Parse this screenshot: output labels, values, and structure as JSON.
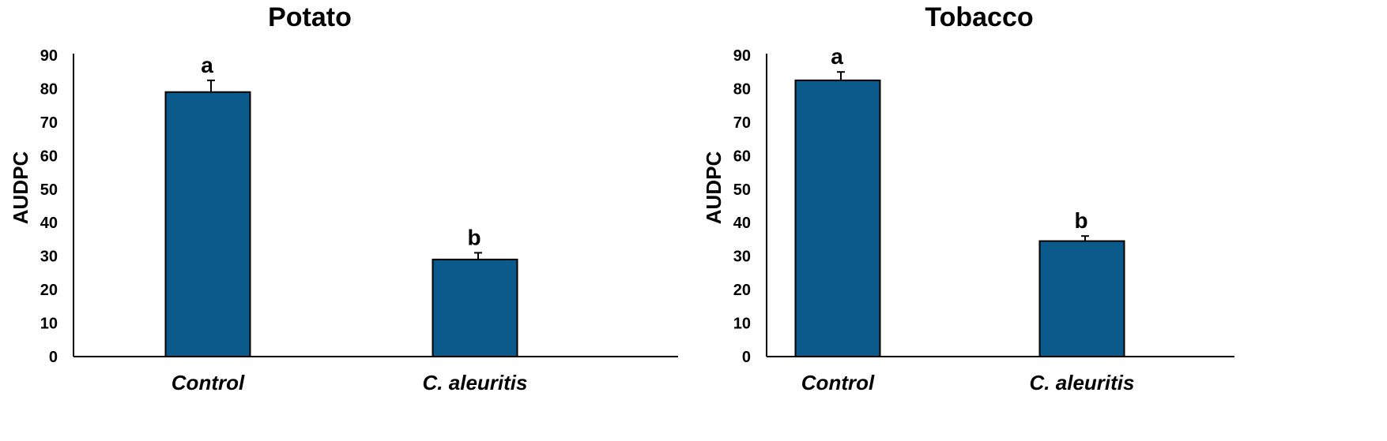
{
  "chart_data": [
    {
      "type": "bar",
      "title": "Potato",
      "xlabel": "",
      "ylabel": "AUDPC",
      "ylim": [
        0,
        90
      ],
      "yticks": [
        0,
        10,
        20,
        30,
        40,
        50,
        60,
        70,
        80,
        90
      ],
      "categories": [
        "Control",
        "C. aleuritis"
      ],
      "values": [
        79,
        29
      ],
      "errors": [
        3.5,
        2
      ],
      "significance_letters": [
        "a",
        "b"
      ],
      "bar_color": "#0b5a8c",
      "grid": false,
      "legend": "none"
    },
    {
      "type": "bar",
      "title": "Tobacco",
      "xlabel": "",
      "ylabel": "AUDPC",
      "ylim": [
        0,
        90
      ],
      "yticks": [
        0,
        10,
        20,
        30,
        40,
        50,
        60,
        70,
        80,
        90
      ],
      "categories": [
        "Control",
        "C. aleuritis"
      ],
      "values": [
        82.5,
        34.5
      ],
      "errors": [
        2.5,
        1.5
      ],
      "significance_letters": [
        "a",
        "b"
      ],
      "bar_color": "#0b5a8c",
      "grid": false,
      "legend": "none"
    }
  ]
}
